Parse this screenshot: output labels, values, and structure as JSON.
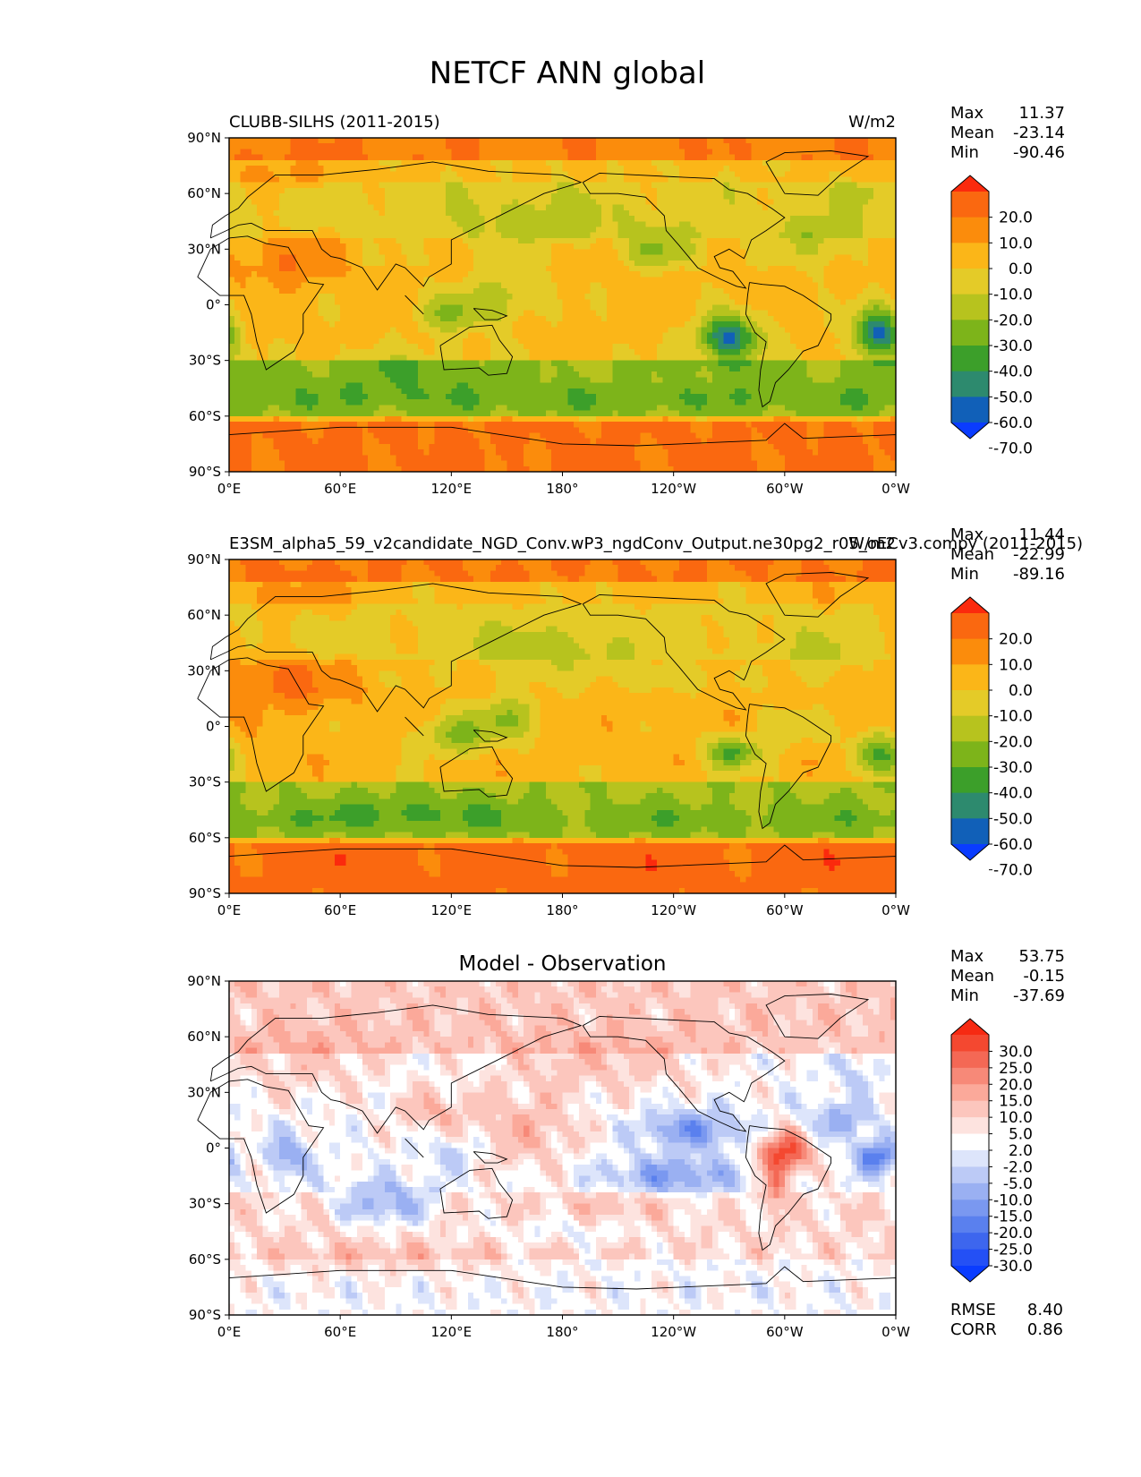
{
  "title": "NETCF ANN global",
  "panels": [
    {
      "left_title": "CLUBB-SILHS (2011-2015)",
      "center_title": "",
      "right_title": "W/m2",
      "stats": [
        {
          "label": "Max",
          "value": "11.37"
        },
        {
          "label": "Mean",
          "value": "-23.14"
        },
        {
          "label": "Min",
          "value": "-90.46"
        }
      ],
      "extra_stats": []
    },
    {
      "left_title": "E3SM_alpha5_59_v2candidate_NGD_Conv.wP3_ngdConv_Output.ne30pg2_r05_oECv3.compy (2011-2015)",
      "center_title": "",
      "right_title": "W/m2",
      "stats": [
        {
          "label": "Max",
          "value": "11.44"
        },
        {
          "label": "Mean",
          "value": "-22.99"
        },
        {
          "label": "Min",
          "value": "-89.16"
        }
      ],
      "extra_stats": []
    },
    {
      "left_title": "",
      "center_title": "Model - Observation",
      "right_title": "",
      "stats": [
        {
          "label": "Max",
          "value": "53.75"
        },
        {
          "label": "Mean",
          "value": "-0.15"
        },
        {
          "label": "Min",
          "value": "-37.69"
        }
      ],
      "extra_stats": [
        {
          "label": "RMSE",
          "value": "8.40"
        },
        {
          "label": "CORR",
          "value": "0.86"
        }
      ]
    }
  ],
  "chart_data": [
    {
      "type": "heatmap",
      "subtype": "filled-contour map",
      "title": "CLUBB-SILHS (2011-2015)",
      "units": "W/m2",
      "x_ticks": [
        "0°E",
        "60°E",
        "120°E",
        "180°",
        "120°W",
        "60°W",
        "0°W"
      ],
      "y_ticks": [
        "90°N",
        "60°N",
        "30°N",
        "0°",
        "30°S",
        "60°S",
        "90°S"
      ],
      "xlim": [
        0,
        360
      ],
      "ylim": [
        -90,
        90
      ],
      "colorbar": {
        "levels": [
          -80,
          -70,
          -60,
          -50,
          -40,
          -30,
          -20,
          -10,
          0,
          10,
          20,
          30
        ],
        "tick_labels": [
          "20.0",
          "10.0",
          "0.0",
          "-10.0",
          "-20.0",
          "-30.0",
          "-40.0",
          "-50.0",
          "-60.0",
          "-70.0"
        ],
        "colors": [
          "#0a3cff",
          "#1160b8",
          "#2d8a6e",
          "#3c9f2a",
          "#7db41a",
          "#b7c31e",
          "#e4cb28",
          "#fbb618",
          "#fb8c0c",
          "#fa6810",
          "#fb2a0d"
        ],
        "extend": "both"
      },
      "stats": {
        "max": 11.37,
        "mean": -23.14,
        "min": -90.46
      }
    },
    {
      "type": "heatmap",
      "subtype": "filled-contour map",
      "title": "E3SM_alpha5_59_v2candidate_NGD_Conv.wP3_ngdConv_Output.ne30pg2_r05_oECv3.compy (2011-2015)",
      "units": "W/m2",
      "x_ticks": [
        "0°E",
        "60°E",
        "120°E",
        "180°",
        "120°W",
        "60°W",
        "0°W"
      ],
      "y_ticks": [
        "90°N",
        "60°N",
        "30°N",
        "0°",
        "30°S",
        "60°S",
        "90°S"
      ],
      "xlim": [
        0,
        360
      ],
      "ylim": [
        -90,
        90
      ],
      "colorbar": {
        "levels": [
          -80,
          -70,
          -60,
          -50,
          -40,
          -30,
          -20,
          -10,
          0,
          10,
          20,
          30
        ],
        "tick_labels": [
          "20.0",
          "10.0",
          "0.0",
          "-10.0",
          "-20.0",
          "-30.0",
          "-40.0",
          "-50.0",
          "-60.0",
          "-70.0"
        ],
        "colors": [
          "#0a3cff",
          "#1160b8",
          "#2d8a6e",
          "#3c9f2a",
          "#7db41a",
          "#b7c31e",
          "#e4cb28",
          "#fbb618",
          "#fb8c0c",
          "#fa6810",
          "#fb2a0d"
        ],
        "extend": "both"
      },
      "stats": {
        "max": 11.44,
        "mean": -22.99,
        "min": -89.16
      }
    },
    {
      "type": "heatmap",
      "subtype": "filled-contour map",
      "title": "Model - Observation",
      "x_ticks": [
        "0°E",
        "60°E",
        "120°E",
        "180°",
        "120°W",
        "60°W",
        "0°W"
      ],
      "y_ticks": [
        "90°N",
        "60°N",
        "30°N",
        "0°",
        "30°S",
        "60°S",
        "90°S"
      ],
      "xlim": [
        0,
        360
      ],
      "ylim": [
        -90,
        90
      ],
      "colorbar": {
        "levels": [
          -35,
          -30,
          -25,
          -20,
          -15,
          -10,
          -5,
          -2,
          2,
          5,
          10,
          15,
          20,
          25,
          30,
          35
        ],
        "tick_labels": [
          "30.0",
          "25.0",
          "20.0",
          "15.0",
          "10.0",
          "5.0",
          "2.0",
          "-2.0",
          "-5.0",
          "-10.0",
          "-15.0",
          "-20.0",
          "-25.0",
          "-30.0"
        ],
        "colors": [
          "#0a3cff",
          "#2450f5",
          "#3d66ee",
          "#5a80ee",
          "#7a98f0",
          "#9ab0f2",
          "#bccaf6",
          "#dde5fb",
          "#ffffff",
          "#fde3df",
          "#fcc6bd",
          "#fba99a",
          "#f78978",
          "#f46855",
          "#f44830",
          "#f62a12"
        ],
        "extend": "both"
      },
      "stats": {
        "max": 53.75,
        "mean": -0.15,
        "min": -37.69,
        "rmse": 8.4,
        "corr": 0.86
      }
    }
  ]
}
